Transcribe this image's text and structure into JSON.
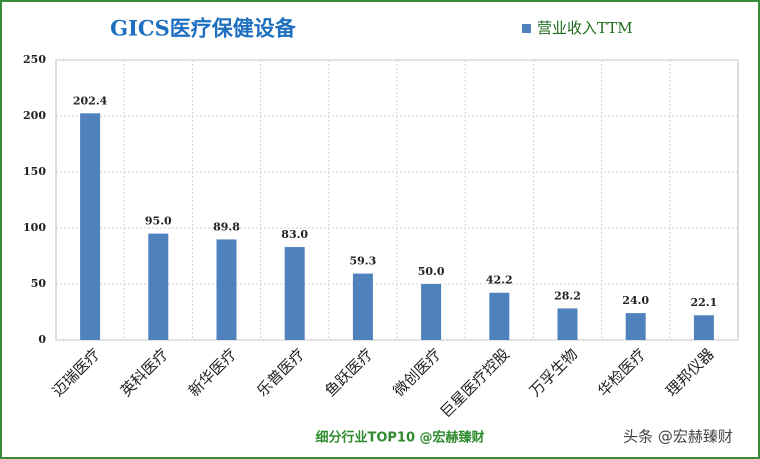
{
  "chart_data": {
    "type": "bar",
    "title": "GICS医疗保健设备",
    "categories": [
      "迈瑞医疗",
      "英科医疗",
      "新华医疗",
      "乐普医疗",
      "鱼跃医疗",
      "微创医疗",
      "巨星医疗控股",
      "万孚生物",
      "华检医疗",
      "理邦仪器"
    ],
    "series": [
      {
        "name": "营业收入TTM",
        "color": "#4f81bd",
        "values": [
          202.4,
          95,
          89.8,
          83,
          59.3,
          50,
          42.2,
          28.2,
          24,
          22.1
        ],
        "value_labels": [
          "202.4",
          "95.0",
          "89.8",
          "83.0",
          "59.3",
          "50.0",
          "42.2",
          "28.2",
          "24.0",
          "22.1"
        ]
      }
    ],
    "ylim": [
      0,
      250
    ],
    "yticks": [
      0,
      50,
      100,
      150,
      200,
      250
    ],
    "grid": true,
    "legend": "top-right",
    "annotations": [
      "细分行业TOP10 @宏赫臻财",
      "头条 @宏赫臻财"
    ]
  }
}
